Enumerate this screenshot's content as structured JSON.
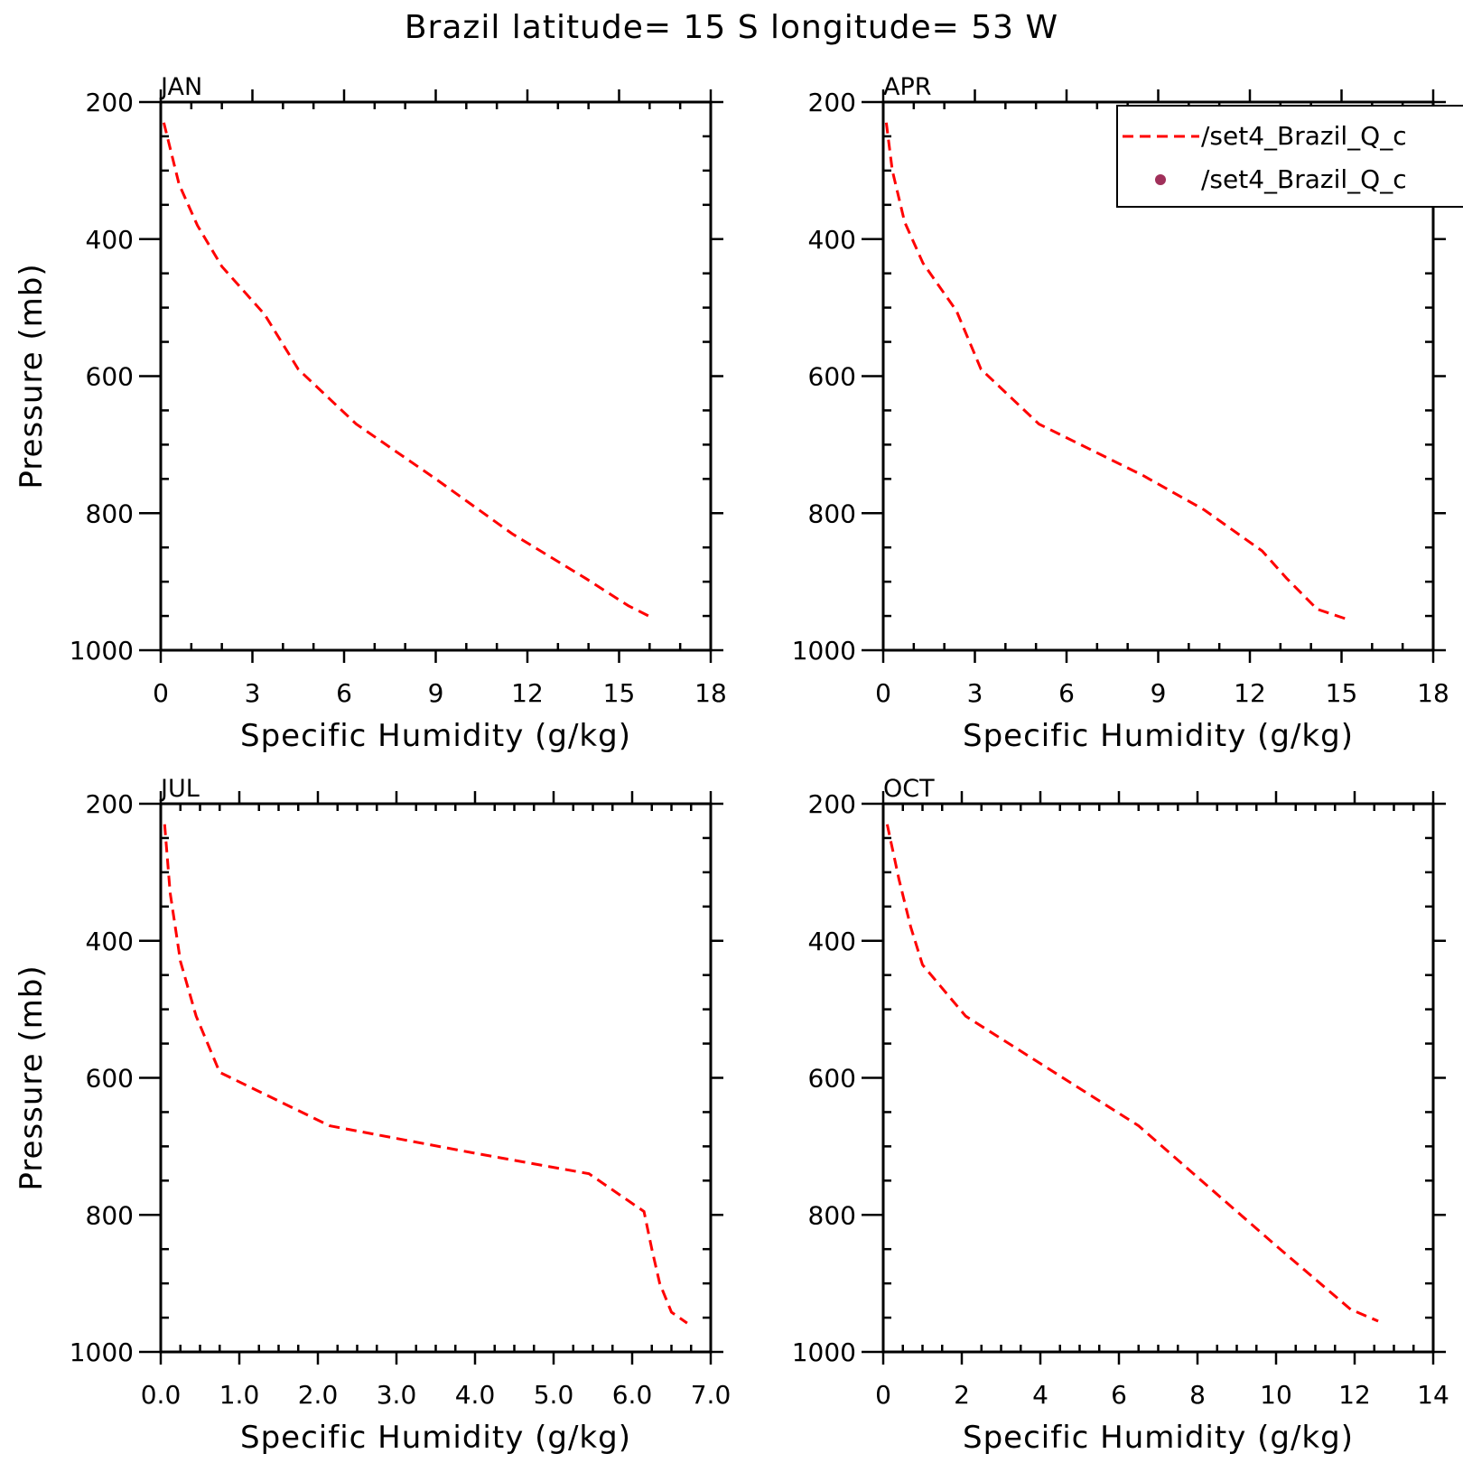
{
  "figure": {
    "title": "Brazil  latitude= 15 S longitude= 53 W"
  },
  "legend": {
    "entries": [
      {
        "label": "/set4_Brazil_Q_c",
        "style": "dashed-line",
        "color": "#ff0000"
      },
      {
        "label": "/set4_Brazil_Q_c",
        "style": "marker",
        "color": "#a0305a"
      }
    ]
  },
  "chart_data": [
    {
      "type": "line",
      "panel": "JAN",
      "title": "JAN",
      "xlabel": "Specific Humidity (g/kg)",
      "ylabel": "Pressure (mb)",
      "xlim": [
        0,
        18
      ],
      "ylim": [
        1000,
        200
      ],
      "y_inverted": true,
      "xticks": [
        0,
        3,
        6,
        9,
        12,
        15,
        18
      ],
      "xtick_labels": [
        "0",
        "3",
        "6",
        "9",
        "12",
        "15",
        "18"
      ],
      "yticks": [
        200,
        400,
        600,
        800,
        1000
      ],
      "ytick_labels": [
        "200",
        "400",
        "600",
        "800",
        "1000"
      ],
      "x_minor_step": 1,
      "y_minor_step": 50,
      "series": [
        {
          "name": "/set4_Brazil_Q_c",
          "color": "#ff0000",
          "style": "dashed",
          "x": [
            0.1,
            0.6,
            1.2,
            2.0,
            3.4,
            4.5,
            6.4,
            9.0,
            11.5,
            13.9,
            15.3,
            16.1
          ],
          "y": [
            230,
            320,
            380,
            440,
            510,
            590,
            670,
            750,
            830,
            895,
            935,
            953
          ]
        }
      ]
    },
    {
      "type": "line",
      "panel": "APR",
      "title": "APR",
      "xlabel": "Specific Humidity (g/kg)",
      "ylabel": "",
      "xlim": [
        0,
        18
      ],
      "ylim": [
        1000,
        200
      ],
      "y_inverted": true,
      "xticks": [
        0,
        3,
        6,
        9,
        12,
        15,
        18
      ],
      "xtick_labels": [
        "0",
        "3",
        "6",
        "9",
        "12",
        "15",
        "18"
      ],
      "yticks": [
        200,
        400,
        600,
        800,
        1000
      ],
      "ytick_labels": [
        "200",
        "400",
        "600",
        "800",
        "1000"
      ],
      "x_minor_step": 1,
      "y_minor_step": 50,
      "series": [
        {
          "name": "/set4_Brazil_Q_c",
          "color": "#ff0000",
          "style": "dashed",
          "x": [
            0.1,
            0.3,
            0.7,
            1.3,
            2.4,
            3.2,
            5.1,
            8.5,
            10.5,
            12.4,
            13.2,
            14.2,
            15.2
          ],
          "y": [
            230,
            300,
            375,
            435,
            505,
            590,
            670,
            745,
            795,
            855,
            895,
            940,
            955
          ]
        }
      ]
    },
    {
      "type": "line",
      "panel": "JUL",
      "title": "JUL",
      "xlabel": "Specific Humidity (g/kg)",
      "ylabel": "Pressure (mb)",
      "xlim": [
        0,
        7
      ],
      "ylim": [
        1000,
        200
      ],
      "y_inverted": true,
      "xticks": [
        0,
        1,
        2,
        3,
        4,
        5,
        6,
        7
      ],
      "xtick_labels": [
        "0.0",
        "1.0",
        "2.0",
        "3.0",
        "4.0",
        "5.0",
        "6.0",
        "7.0"
      ],
      "yticks": [
        200,
        400,
        600,
        800,
        1000
      ],
      "ytick_labels": [
        "200",
        "400",
        "600",
        "800",
        "1000"
      ],
      "x_minor_step": 0.25,
      "y_minor_step": 50,
      "series": [
        {
          "name": "/set4_Brazil_Q_c",
          "color": "#ff0000",
          "style": "dashed",
          "x": [
            0.05,
            0.12,
            0.25,
            0.45,
            0.75,
            2.15,
            4.0,
            5.45,
            6.15,
            6.25,
            6.35,
            6.5,
            6.7
          ],
          "y": [
            230,
            330,
            430,
            510,
            592,
            670,
            710,
            740,
            795,
            850,
            900,
            942,
            958
          ]
        }
      ]
    },
    {
      "type": "line",
      "panel": "OCT",
      "title": "OCT",
      "xlabel": "Specific Humidity (g/kg)",
      "ylabel": "",
      "xlim": [
        0,
        14
      ],
      "ylim": [
        1000,
        200
      ],
      "y_inverted": true,
      "xticks": [
        0,
        2,
        4,
        6,
        8,
        10,
        12,
        14
      ],
      "xtick_labels": [
        "0",
        "2",
        "4",
        "6",
        "8",
        "10",
        "12",
        "14"
      ],
      "yticks": [
        200,
        400,
        600,
        800,
        1000
      ],
      "ytick_labels": [
        "200",
        "400",
        "600",
        "800",
        "1000"
      ],
      "x_minor_step": 0.5,
      "y_minor_step": 50,
      "series": [
        {
          "name": "/set4_Brazil_Q_c",
          "color": "#ff0000",
          "style": "dashed",
          "x": [
            0.1,
            0.4,
            0.7,
            1.0,
            2.1,
            4.3,
            6.5,
            8.0,
            10.0,
            11.9,
            12.6
          ],
          "y": [
            230,
            310,
            380,
            435,
            510,
            590,
            670,
            745,
            845,
            938,
            955
          ]
        }
      ]
    }
  ]
}
